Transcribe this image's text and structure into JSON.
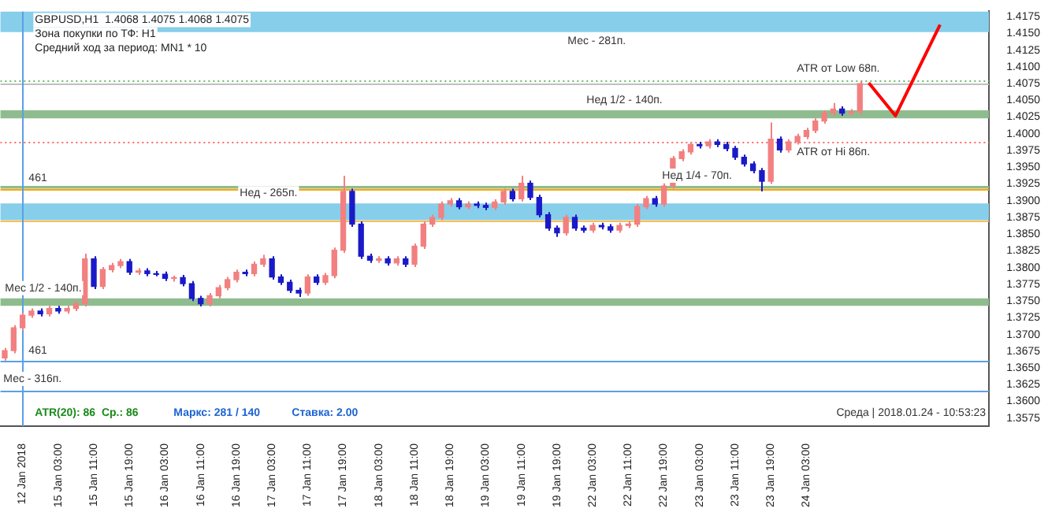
{
  "chart_data": {
    "type": "candlestick",
    "annotations": [
      "GBPUSD,H1  1.4068 1.4075 1.4068 1.4075",
      "Зона покупки по ТФ: H1",
      "Средний ход за период: MN1 * 10",
      "ATR(20): 86  Ср.: 86",
      "Маркс: 281 / 140",
      "Ставка: 2.00",
      "Среда | 2018.01.24 - 10:53:23",
      {
        "text": "461",
        "y": 1.3918
      },
      {
        "text": "461",
        "y": 1.3661
      }
    ],
    "ohlc": [
      [
        1.3665,
        1.368,
        1.3661,
        1.3676
      ],
      [
        1.3676,
        1.3714,
        1.3672,
        1.371
      ],
      [
        1.371,
        1.3733,
        1.3706,
        1.3729
      ],
      [
        1.3729,
        1.3739,
        1.3725,
        1.3735
      ],
      [
        1.3735,
        1.3739,
        1.3727,
        1.3731
      ],
      [
        1.3731,
        1.3743,
        1.3727,
        1.3739
      ],
      [
        1.3739,
        1.3743,
        1.3731,
        1.3735
      ],
      [
        1.3735,
        1.3743,
        1.3731,
        1.3739
      ],
      [
        1.3739,
        1.375,
        1.3735,
        1.3746
      ],
      [
        1.3746,
        1.3821,
        1.3742,
        1.3813
      ],
      [
        1.3813,
        1.3817,
        1.3768,
        1.3772
      ],
      [
        1.3772,
        1.3801,
        1.3768,
        1.3797
      ],
      [
        1.3797,
        1.3807,
        1.3793,
        1.3803
      ],
      [
        1.3803,
        1.3813,
        1.3799,
        1.3809
      ],
      [
        1.3809,
        1.3813,
        1.3789,
        1.3793
      ],
      [
        1.3793,
        1.3799,
        1.3789,
        1.3795
      ],
      [
        1.3795,
        1.3799,
        1.3787,
        1.3791
      ],
      [
        1.3791,
        1.3795,
        1.3787,
        1.379
      ],
      [
        1.379,
        1.3794,
        1.378,
        1.3784
      ],
      [
        1.3784,
        1.3788,
        1.3779,
        1.3785
      ],
      [
        1.3785,
        1.3789,
        1.3772,
        1.3776
      ],
      [
        1.3776,
        1.378,
        1.375,
        1.3754
      ],
      [
        1.3754,
        1.3758,
        1.3742,
        1.3746
      ],
      [
        1.3746,
        1.3762,
        1.3742,
        1.3758
      ],
      [
        1.3758,
        1.3774,
        1.3754,
        1.377
      ],
      [
        1.377,
        1.3786,
        1.3766,
        1.3782
      ],
      [
        1.3782,
        1.3797,
        1.3778,
        1.3793
      ],
      [
        1.3793,
        1.3797,
        1.3787,
        1.3791
      ],
      [
        1.3791,
        1.3809,
        1.3787,
        1.3805
      ],
      [
        1.3805,
        1.3819,
        1.3801,
        1.3813
      ],
      [
        1.3813,
        1.3817,
        1.3782,
        1.3786
      ],
      [
        1.3786,
        1.379,
        1.3774,
        1.3778
      ],
      [
        1.3778,
        1.3782,
        1.3762,
        1.3766
      ],
      [
        1.3766,
        1.377,
        1.3756,
        1.3762
      ],
      [
        1.3762,
        1.379,
        1.3758,
        1.3786
      ],
      [
        1.3786,
        1.379,
        1.3774,
        1.3778
      ],
      [
        1.3778,
        1.3792,
        1.3774,
        1.3788
      ],
      [
        1.3788,
        1.383,
        1.3784,
        1.3826
      ],
      [
        1.3826,
        1.3937,
        1.3822,
        1.3914
      ],
      [
        1.3914,
        1.3918,
        1.3861,
        1.3865
      ],
      [
        1.3865,
        1.3869,
        1.3813,
        1.3817
      ],
      [
        1.3817,
        1.3821,
        1.3807,
        1.3811
      ],
      [
        1.3811,
        1.3817,
        1.3807,
        1.3813
      ],
      [
        1.3813,
        1.3817,
        1.3803,
        1.3807
      ],
      [
        1.3807,
        1.3817,
        1.3803,
        1.3813
      ],
      [
        1.3813,
        1.3817,
        1.3801,
        1.3805
      ],
      [
        1.3805,
        1.3836,
        1.3801,
        1.3832
      ],
      [
        1.3832,
        1.3869,
        1.3828,
        1.3865
      ],
      [
        1.3865,
        1.3879,
        1.3861,
        1.3875
      ],
      [
        1.3875,
        1.3899,
        1.3871,
        1.3895
      ],
      [
        1.3895,
        1.3904,
        1.3891,
        1.39
      ],
      [
        1.39,
        1.3904,
        1.3887,
        1.3891
      ],
      [
        1.3891,
        1.3899,
        1.3887,
        1.3895
      ],
      [
        1.3895,
        1.3899,
        1.3889,
        1.3893
      ],
      [
        1.3893,
        1.3897,
        1.3886,
        1.389
      ],
      [
        1.389,
        1.3902,
        1.3886,
        1.3898
      ],
      [
        1.3898,
        1.3918,
        1.3894,
        1.3914
      ],
      [
        1.3914,
        1.3918,
        1.3899,
        1.3903
      ],
      [
        1.3903,
        1.3937,
        1.3899,
        1.3926
      ],
      [
        1.3926,
        1.393,
        1.3901,
        1.3905
      ],
      [
        1.3905,
        1.3909,
        1.3875,
        1.3879
      ],
      [
        1.3879,
        1.3883,
        1.3855,
        1.3859
      ],
      [
        1.3859,
        1.3863,
        1.3846,
        1.3852
      ],
      [
        1.3852,
        1.3879,
        1.3848,
        1.3875
      ],
      [
        1.3875,
        1.3879,
        1.3855,
        1.3859
      ],
      [
        1.3859,
        1.3863,
        1.3852,
        1.3856
      ],
      [
        1.3856,
        1.3867,
        1.3852,
        1.3863
      ],
      [
        1.3863,
        1.3867,
        1.3857,
        1.3861
      ],
      [
        1.3861,
        1.3865,
        1.3852,
        1.3856
      ],
      [
        1.3856,
        1.3867,
        1.3852,
        1.3863
      ],
      [
        1.3863,
        1.3869,
        1.3859,
        1.3865
      ],
      [
        1.3865,
        1.3895,
        1.3861,
        1.3891
      ],
      [
        1.3891,
        1.3907,
        1.3887,
        1.3903
      ],
      [
        1.3903,
        1.3907,
        1.3891,
        1.3895
      ],
      [
        1.3895,
        1.3926,
        1.3891,
        1.3922
      ],
      [
        1.3922,
        1.3967,
        1.3918,
        1.3963
      ],
      [
        1.3963,
        1.3977,
        1.3959,
        1.3973
      ],
      [
        1.3973,
        1.3988,
        1.3969,
        1.3984
      ],
      [
        1.3984,
        1.3988,
        1.3978,
        1.3982
      ],
      [
        1.3982,
        1.3992,
        1.3978,
        1.3988
      ],
      [
        1.3988,
        1.3992,
        1.398,
        1.3984
      ],
      [
        1.3984,
        1.3988,
        1.3974,
        1.3978
      ],
      [
        1.3978,
        1.3982,
        1.3961,
        1.3965
      ],
      [
        1.3965,
        1.3969,
        1.3951,
        1.3955
      ],
      [
        1.3955,
        1.3959,
        1.3941,
        1.3945
      ],
      [
        1.3945,
        1.3949,
        1.3914,
        1.3929
      ],
      [
        1.3929,
        1.4017,
        1.3925,
        1.3992
      ],
      [
        1.3992,
        1.3996,
        1.3972,
        1.3976
      ],
      [
        1.3976,
        1.3992,
        1.3972,
        1.3988
      ],
      [
        1.3988,
        1.4,
        1.3984,
        1.3996
      ],
      [
        1.3996,
        1.4009,
        1.3992,
        1.4005
      ],
      [
        1.4005,
        1.4023,
        1.4001,
        1.4019
      ],
      [
        1.4019,
        1.4035,
        1.4015,
        1.4031
      ],
      [
        1.4031,
        1.4046,
        1.4027,
        1.4037
      ],
      [
        1.4037,
        1.4041,
        1.4027,
        1.4031
      ],
      [
        1.4031,
        1.4037,
        1.4027,
        1.4033
      ],
      [
        1.4033,
        1.4079,
        1.4029,
        1.4075
      ],
      null,
      null,
      null,
      null,
      null,
      null,
      null,
      null,
      null,
      null,
      null,
      null,
      null,
      null
    ],
    "colors": [
      "#f28080",
      "#f28080",
      "#f28080",
      "#f28080",
      "#1a1ac8",
      "#f28080",
      "#1a1ac8",
      "#f28080",
      "#f28080",
      "#f28080",
      "#1a1ac8",
      "#f28080",
      "#f28080",
      "#f28080",
      "#1a1ac8",
      "#f28080",
      "#1a1ac8",
      "#1a1ac8",
      "#1a1ac8",
      "#f28080",
      "#1a1ac8",
      "#1a1ac8",
      "#1a1ac8",
      "#f28080",
      "#f28080",
      "#f28080",
      "#f28080",
      "#1a1ac8",
      "#f28080",
      "#f28080",
      "#1a1ac8",
      "#1a1ac8",
      "#1a1ac8",
      "#1a1ac8",
      "#f28080",
      "#1a1ac8",
      "#f28080",
      "#f28080",
      "#f28080",
      "#1a1ac8",
      "#1a1ac8",
      "#1a1ac8",
      "#f28080",
      "#1a1ac8",
      "#f28080",
      "#1a1ac8",
      "#f28080",
      "#f28080",
      "#f28080",
      "#f28080",
      "#f28080",
      "#1a1ac8",
      "#f28080",
      "#1a1ac8",
      "#1a1ac8",
      "#f28080",
      "#f28080",
      "#1a1ac8",
      "#f28080",
      "#1a1ac8",
      "#1a1ac8",
      "#1a1ac8",
      "#1a1ac8",
      "#f28080",
      "#1a1ac8",
      "#1a1ac8",
      "#f28080",
      "#1a1ac8",
      "#1a1ac8",
      "#f28080",
      "#f28080",
      "#f28080",
      "#f28080",
      "#1a1ac8",
      "#f28080",
      "#f28080",
      "#f28080",
      "#f28080",
      "#1a1ac8",
      "#f28080",
      "#1a1ac8",
      "#1a1ac8",
      "#1a1ac8",
      "#1a1ac8",
      "#1a1ac8",
      "#1a1ac8",
      "#f28080",
      "#1a1ac8",
      "#f28080",
      "#f28080",
      "#f28080",
      "#f28080",
      "#f28080",
      "#f28080",
      "#1a1ac8",
      "#f28080",
      "#f28080",
      null,
      null,
      null,
      null,
      null,
      null,
      null,
      null,
      null,
      null,
      null,
      null,
      null,
      null
    ],
    "series": [
      {
        "type": "line",
        "values": [
          null,
          null,
          null,
          null,
          null,
          null,
          null,
          null,
          null,
          null,
          null,
          null,
          null,
          null,
          null,
          null,
          null,
          null,
          null,
          null,
          null,
          null,
          null,
          null,
          null,
          null,
          null,
          null,
          null,
          null,
          null,
          null,
          null,
          null,
          null,
          null,
          null,
          null,
          null,
          null,
          null,
          null,
          null,
          null,
          null,
          null,
          null,
          null,
          null,
          null,
          null,
          null,
          null,
          null,
          null,
          null,
          null,
          null,
          null,
          null,
          null,
          null,
          null,
          null,
          null,
          null,
          null,
          null,
          null,
          null,
          null,
          null,
          null,
          null,
          null,
          null,
          null,
          null,
          null,
          null,
          null,
          null,
          null,
          null,
          null,
          null,
          null,
          null,
          null,
          null,
          null,
          null,
          null,
          null,
          null,
          null,
          null,
          1.4076,
          null,
          null,
          1.4027,
          null,
          null,
          null,
          null,
          1.4163,
          null,
          null,
          null,
          null,
          null
        ],
        "color": "#ff0000"
      }
    ],
    "categories": [
      null,
      null,
      "12 Jan 2018",
      null,
      null,
      null,
      "15 Jan 03:00",
      null,
      null,
      null,
      "15 Jan 11:00",
      null,
      null,
      null,
      "15 Jan 19:00",
      null,
      null,
      null,
      "16 Jan 03:00",
      null,
      null,
      null,
      "16 Jan 11:00",
      null,
      null,
      null,
      "16 Jan 19:00",
      null,
      null,
      null,
      "17 Jan 03:00",
      null,
      null,
      null,
      "17 Jan 11:00",
      null,
      null,
      null,
      "17 Jan 19:00",
      null,
      null,
      null,
      "18 Jan 03:00",
      null,
      null,
      null,
      "18 Jan 11:00",
      null,
      null,
      null,
      "18 Jan 19:00",
      null,
      null,
      null,
      "19 Jan 03:00",
      null,
      null,
      null,
      "19 Jan 11:00",
      null,
      null,
      null,
      "19 Jan 19:00",
      null,
      null,
      null,
      "22 Jan 03:00",
      null,
      null,
      null,
      "22 Jan 11:00",
      null,
      null,
      null,
      "22 Jan 19:00",
      null,
      null,
      null,
      "23 Jan 03:00",
      null,
      null,
      null,
      "23 Jan 11:00",
      null,
      null,
      null,
      "23 Jan 19:00",
      null,
      null,
      null,
      "24 Jan 03:00",
      null,
      null,
      null,
      null,
      null,
      null,
      null,
      null,
      null,
      null,
      null,
      null,
      null,
      null,
      null,
      null,
      null,
      null,
      null,
      null
    ],
    "ylim": [
      1.3563,
      1.4183
    ],
    "yticks": [
      {
        "value": 1.3575,
        "label": "1.3575"
      },
      {
        "value": 1.36,
        "label": "1.3600"
      },
      {
        "value": 1.3625,
        "label": "1.3625"
      },
      {
        "value": 1.365,
        "label": "1.3650"
      },
      {
        "value": 1.3675,
        "label": "1.3675"
      },
      {
        "value": 1.37,
        "label": "1.3700"
      },
      {
        "value": 1.3725,
        "label": "1.3725"
      },
      {
        "value": 1.375,
        "label": "1.3750"
      },
      {
        "value": 1.3775,
        "label": "1.3775"
      },
      {
        "value": 1.38,
        "label": "1.3800"
      },
      {
        "value": 1.3825,
        "label": "1.3825"
      },
      {
        "value": 1.385,
        "label": "1.3850"
      },
      {
        "value": 1.3875,
        "label": "1.3875"
      },
      {
        "value": 1.39,
        "label": "1.3900"
      },
      {
        "value": 1.3925,
        "label": "1.3925"
      },
      {
        "value": 1.395,
        "label": "1.3950"
      },
      {
        "value": 1.3975,
        "label": "1.3975"
      },
      {
        "value": 1.4,
        "label": "1.4000"
      },
      {
        "value": 1.4025,
        "label": "1.4025"
      },
      {
        "value": 1.405,
        "label": "1.4050"
      },
      {
        "value": 1.4075,
        "label": "1.4075"
      },
      {
        "value": 1.41,
        "label": "1.4100"
      },
      {
        "value": 1.4125,
        "label": "1.4125"
      },
      {
        "value": 1.415,
        "label": "1.4150"
      },
      {
        "value": 1.4175,
        "label": "1.4175"
      }
    ],
    "bands": [
      {
        "axis": "y",
        "from": 1.4152,
        "to": 1.4183,
        "label": "Мес - 281п.",
        "color": "#87ceeb"
      },
      {
        "axis": "y",
        "from": 1.3871,
        "to": 1.3896,
        "label": "Нед - 265п.",
        "color": "#87ceeb"
      },
      {
        "axis": "y",
        "from": 1.4023,
        "to": 1.4035,
        "label": "Нед 1/2 - 140п.",
        "color": "#8fbc8f"
      },
      {
        "axis": "y",
        "from": 1.3918,
        "to": 1.3922,
        "label": "Нед 1/4 - 70п.",
        "color": "#8fbc8f"
      },
      {
        "axis": "y",
        "from": 1.3743,
        "to": 1.3754,
        "label": "Мес 1/2 - 140п.",
        "color": "#8fbc8f"
      }
    ],
    "ref_lines": [
      {
        "axis": "y",
        "value": 1.3918,
        "color": "#ffa500"
      },
      {
        "axis": "y",
        "value": 1.3871,
        "color": "#ffc04d"
      },
      {
        "axis": "y",
        "value": 1.3661,
        "color": "#5aa0e6"
      },
      {
        "axis": "y",
        "value": 1.3616,
        "label": "Мес - 316п.",
        "color": "#5aa0e6"
      },
      {
        "axis": "y",
        "value": 1.4075,
        "color": "#c0c0c0"
      },
      {
        "axis": "y",
        "value": 1.408,
        "label": "ATR от Low 68п.",
        "color": "#66bb66",
        "line_style": "dotted"
      },
      {
        "axis": "y",
        "value": 1.3988,
        "label": "ATR от Hi 86п.",
        "color": "#ff6666",
        "line_style": "dotted"
      },
      {
        "axis": "x",
        "value": "12 Jan 2018",
        "color": "#5aa0e6"
      }
    ],
    "grid": false,
    "legend": false
  }
}
